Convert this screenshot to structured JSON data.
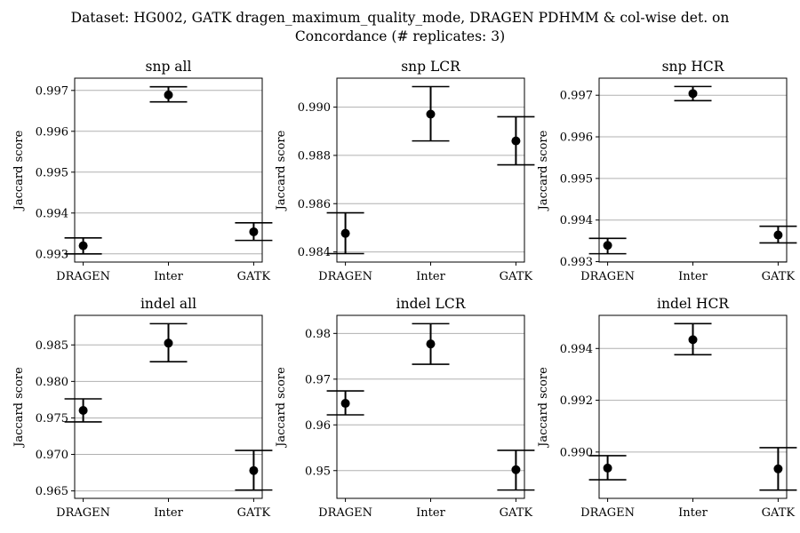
{
  "figure": {
    "suptitle_line1": "Dataset: HG002, GATK dragen_maximum_quality_mode, DRAGEN PDHMM & col-wise det. on",
    "suptitle_line2": "Concordance (# replicates: 3)"
  },
  "colors": {
    "marker": "#000000",
    "errorbar": "#000000",
    "grid": "#b0b0b0",
    "axes": "#000000"
  },
  "chart_data": [
    {
      "type": "scatter",
      "title": "snp all",
      "xlabel": "",
      "ylabel": "Jaccard score",
      "categories": [
        "DRAGEN",
        "Inter",
        "GATK"
      ],
      "values": [
        0.9932,
        0.99689,
        0.99354
      ],
      "err_low": [
        0.993,
        0.99672,
        0.99333
      ],
      "err_high": [
        0.99339,
        0.99709,
        0.99376
      ],
      "ylim": [
        0.9928,
        0.9973
      ],
      "yticks": [
        0.993,
        0.994,
        0.995,
        0.996,
        0.997
      ],
      "ytick_labels": [
        "0.993",
        "0.994",
        "0.995",
        "0.996",
        "0.997"
      ],
      "grid": "y"
    },
    {
      "type": "scatter",
      "title": "snp LCR",
      "xlabel": "",
      "ylabel": "Jaccard score",
      "categories": [
        "DRAGEN",
        "Inter",
        "GATK"
      ],
      "values": [
        0.98477,
        0.98971,
        0.9886
      ],
      "err_low": [
        0.98393,
        0.9886,
        0.98761
      ],
      "err_high": [
        0.98562,
        0.99085,
        0.9896
      ],
      "ylim": [
        0.98358,
        0.9912
      ],
      "yticks": [
        0.984,
        0.986,
        0.988,
        0.99
      ],
      "ytick_labels": [
        "0.984",
        "0.986",
        "0.988",
        "0.990"
      ],
      "grid": "y"
    },
    {
      "type": "scatter",
      "title": "snp HCR",
      "xlabel": "",
      "ylabel": "Jaccard score",
      "categories": [
        "DRAGEN",
        "Inter",
        "GATK"
      ],
      "values": [
        0.99339,
        0.99704,
        0.99364
      ],
      "err_low": [
        0.99319,
        0.99687,
        0.99345
      ],
      "err_high": [
        0.99356,
        0.99721,
        0.99385
      ],
      "ylim": [
        0.99299,
        0.99741
      ],
      "yticks": [
        0.993,
        0.994,
        0.995,
        0.996,
        0.997
      ],
      "ytick_labels": [
        "0.993",
        "0.994",
        "0.995",
        "0.996",
        "0.997"
      ],
      "grid": "y"
    },
    {
      "type": "scatter",
      "title": "indel all",
      "xlabel": "",
      "ylabel": "Jaccard score",
      "categories": [
        "DRAGEN",
        "Inter",
        "GATK"
      ],
      "values": [
        0.97603,
        0.98524,
        0.96779
      ],
      "err_low": [
        0.97445,
        0.9827,
        0.96512
      ],
      "err_high": [
        0.97761,
        0.98791,
        0.97055
      ],
      "ylim": [
        0.96398,
        0.98905
      ],
      "yticks": [
        0.965,
        0.97,
        0.975,
        0.98,
        0.985
      ],
      "ytick_labels": [
        "0.965",
        "0.970",
        "0.975",
        "0.980",
        "0.985"
      ],
      "grid": "y"
    },
    {
      "type": "scatter",
      "title": "indel LCR",
      "xlabel": "",
      "ylabel": "Jaccard score",
      "categories": [
        "DRAGEN",
        "Inter",
        "GATK"
      ],
      "values": [
        0.96471,
        0.9777,
        0.9502
      ],
      "err_low": [
        0.96219,
        0.97326,
        0.94575
      ],
      "err_high": [
        0.96743,
        0.98213,
        0.95443
      ],
      "ylim": [
        0.94393,
        0.98395
      ],
      "yticks": [
        0.95,
        0.96,
        0.97,
        0.98
      ],
      "ytick_labels": [
        "0.95",
        "0.96",
        "0.97",
        "0.98"
      ],
      "grid": "y"
    },
    {
      "type": "scatter",
      "title": "indel HCR",
      "xlabel": "",
      "ylabel": "Jaccard score",
      "categories": [
        "DRAGEN",
        "Inter",
        "GATK"
      ],
      "values": [
        0.98938,
        0.99434,
        0.98935
      ],
      "err_low": [
        0.98893,
        0.99376,
        0.98853
      ],
      "err_high": [
        0.98986,
        0.99496,
        0.99017
      ],
      "ylim": [
        0.98821,
        0.99528
      ],
      "yticks": [
        0.99,
        0.992,
        0.994
      ],
      "ytick_labels": [
        "0.990",
        "0.992",
        "0.994"
      ],
      "grid": "y"
    }
  ]
}
